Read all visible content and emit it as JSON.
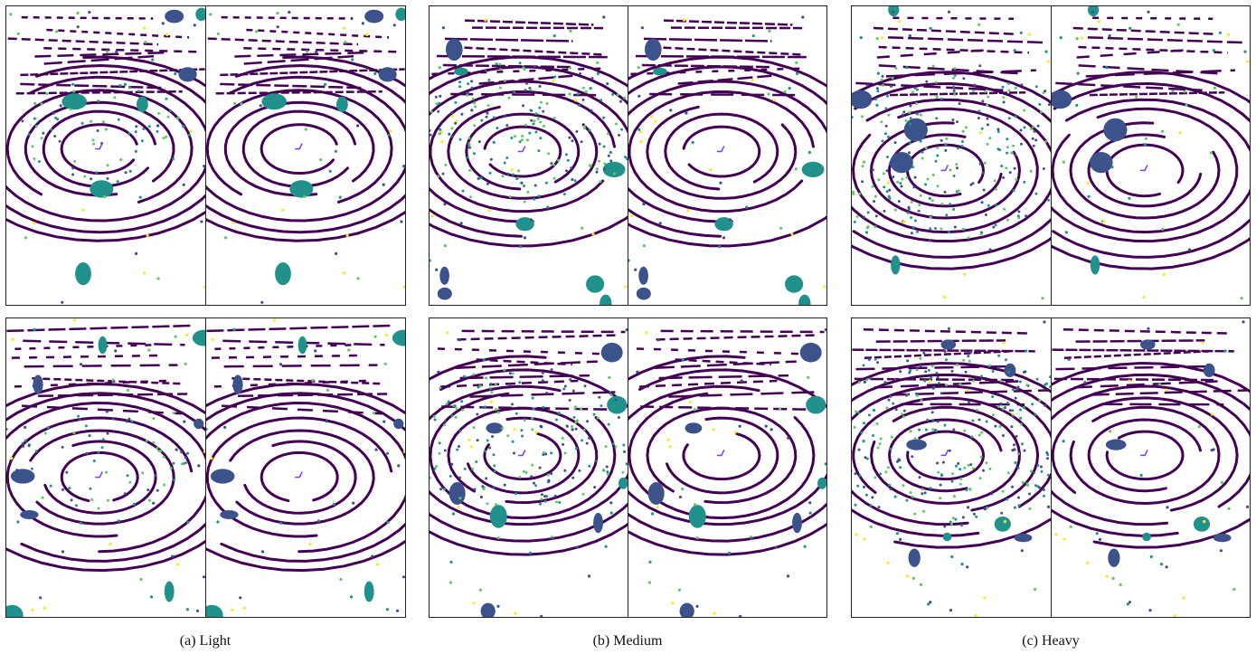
{
  "figure": {
    "captions": [
      {
        "label": "(a) Light"
      },
      {
        "label": "(b) Medium"
      },
      {
        "label": "(c) Heavy"
      }
    ],
    "colormap": [
      "#440154",
      "#3b528b",
      "#21918c",
      "#5ec962",
      "#fde725"
    ],
    "panels_per_group": 4,
    "noise_levels": [
      0.35,
      1.0,
      1.6
    ]
  }
}
